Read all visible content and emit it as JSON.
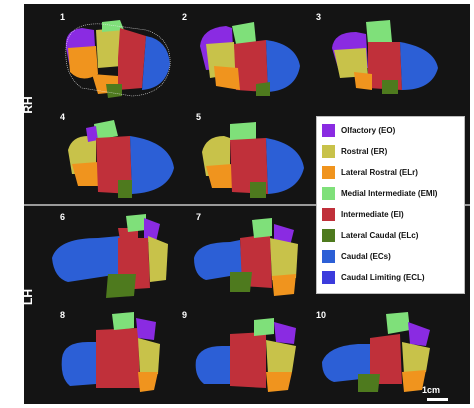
{
  "hemispheres": {
    "right": "RH",
    "left": "LH"
  },
  "panels": [
    "1",
    "2",
    "3",
    "4",
    "5",
    "6",
    "7",
    "8",
    "9",
    "10"
  ],
  "legend": [
    {
      "label": "Olfactory (EO)",
      "color": "#8a2be2"
    },
    {
      "label": "Rostral (ER)",
      "color": "#c8c24a"
    },
    {
      "label": "Lateral Rostral (ELr)",
      "color": "#f0941e"
    },
    {
      "label": "Medial Intermediate (EMI)",
      "color": "#7fe07a"
    },
    {
      "label": "Intermediate (EI)",
      "color": "#c0303a"
    },
    {
      "label": "Lateral Caudal (ELc)",
      "color": "#4e7a1e"
    },
    {
      "label": "Caudal (ECs)",
      "color": "#2c5fd6"
    },
    {
      "label": "Caudal Limiting (ECL)",
      "color": "#3b3bdc"
    }
  ],
  "scale": "1cm"
}
